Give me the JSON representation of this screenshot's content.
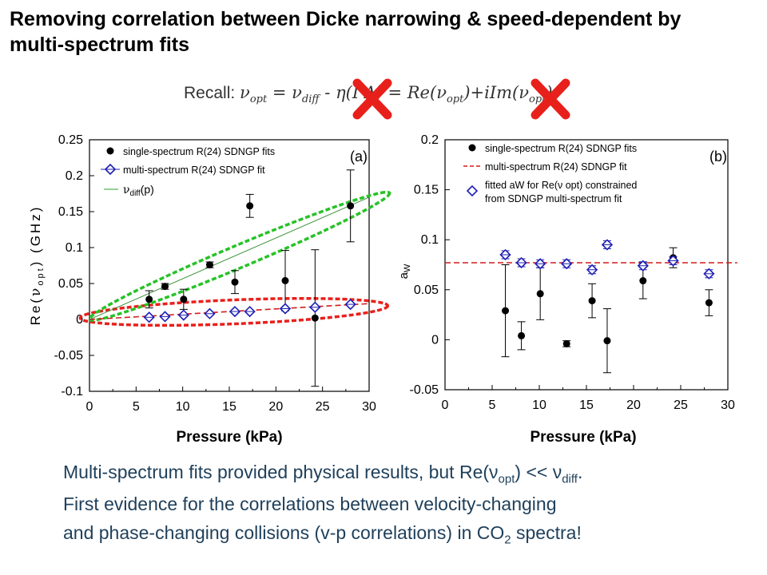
{
  "slide": {
    "title": "Removing correlation between Dicke narrowing & speed-dependent by multi-spectrum fits",
    "recall": {
      "prefix": "Recall: ",
      "nu": "ν",
      "opt": "opt",
      "diff": "diff",
      "eq1": " = ",
      "minus": " - ",
      "eta": "η",
      "hidden_part": "(Γ",
      "delta_close": "Δ) = Re(",
      "plus_im": ")+iIm(",
      "close": ")"
    },
    "bottom": {
      "line1_a": "Multi-spectrum fits provided physical results, but Re(",
      "line1_nu": "ν",
      "line1_sub1": "opt",
      "line1_b": ") << ",
      "line1_nu2": "ν",
      "line1_sub2": "diff",
      "line1_c": ".",
      "line2": "First evidence for the correlations between velocity-changing",
      "line3_a": "and phase-changing collisions  (v-p correlations) in CO",
      "line3_sub": "2",
      "line3_b": " spectra!"
    },
    "colors": {
      "marker_open": "#1f1fb4",
      "red_ellipse": "#e8201c",
      "green_ellipse": "#27c227",
      "red_dash": "#d41c1c",
      "cross": "#e8201c",
      "title": "#000000",
      "body_text": "#1e3f5a"
    }
  },
  "chart_data": [
    {
      "type": "scatter",
      "panel_label": "(a)",
      "xlabel": "Pressure (kPa)",
      "ylabel": "Re(ν opt) (GHz)",
      "xlim": [
        0,
        30
      ],
      "ylim": [
        -0.1,
        0.25
      ],
      "xticks": [
        "0",
        "5",
        "10",
        "15",
        "20",
        "25",
        "30"
      ],
      "yticks": [
        "-0.1",
        "-0.05",
        "0",
        "0.05",
        "0.1",
        "0.15",
        "0.2",
        "0.25"
      ],
      "legend": [
        "single-spectrum R(24) SDNGP fits",
        "multi-spectrum R(24) SDNGP fit",
        "ν diff(p)"
      ],
      "series": [
        {
          "name": "single-spectrum R(24) SDNGP fits",
          "marker": "filled-circle",
          "x": [
            6.4,
            8.1,
            10.1,
            12.9,
            15.6,
            17.2,
            21.0,
            24.2,
            28.0
          ],
          "y": [
            0.028,
            0.046,
            0.028,
            0.076,
            0.052,
            0.158,
            0.054,
            0.002,
            0.158
          ],
          "yerr": [
            0.012,
            0.004,
            0.014,
            0.004,
            0.016,
            0.016,
            0.042,
            0.095,
            0.05
          ]
        },
        {
          "name": "multi-spectrum R(24) SDNGP fit",
          "marker": "open-diamond",
          "x": [
            6.4,
            8.1,
            10.1,
            12.9,
            15.6,
            17.2,
            21.0,
            24.2,
            28.0
          ],
          "y": [
            0.003,
            0.004,
            0.006,
            0.008,
            0.011,
            0.011,
            0.015,
            0.017,
            0.021
          ]
        }
      ],
      "fit_lines": [
        {
          "name": "multi-spectrum fit trend",
          "style": "red-dash",
          "x": [
            0,
            30
          ],
          "y": [
            0.0,
            0.022
          ]
        },
        {
          "name": "ν diff(p)",
          "style": "green-thin",
          "x": [
            0,
            30
          ],
          "y": [
            0.0,
            0.17
          ]
        }
      ]
    },
    {
      "type": "scatter",
      "panel_label": "(b)",
      "xlabel": "Pressure (kPa)",
      "ylabel": "aW",
      "xlim": [
        0,
        30
      ],
      "ylim": [
        -0.05,
        0.2
      ],
      "xticks": [
        "0",
        "5",
        "10",
        "15",
        "20",
        "25",
        "30"
      ],
      "yticks": [
        "-0.05",
        "0",
        "0.05",
        "0.1",
        "0.15",
        "0.2"
      ],
      "legend": [
        "single-spectrum R(24) SDNGP fits",
        "multi-spectrum R(24) SDNGP fit",
        "fitted aW for Re(ν opt) constrained",
        "from SDNGP multi-spectrum fit"
      ],
      "series": [
        {
          "name": "single-spectrum R(24) SDNGP fits",
          "marker": "filled-circle",
          "x": [
            6.4,
            8.1,
            10.1,
            12.9,
            15.6,
            17.2,
            21.0,
            24.2,
            28.0
          ],
          "y": [
            0.029,
            0.004,
            0.046,
            -0.004,
            0.039,
            -0.001,
            0.059,
            0.082,
            0.037
          ],
          "yerr": [
            0.046,
            0.014,
            0.026,
            0.003,
            0.017,
            0.032,
            0.018,
            0.01,
            0.013
          ]
        },
        {
          "name": "fitted aW for Re(ν opt) constrained from SDNGP multi-spectrum fit",
          "marker": "open-diamond",
          "x": [
            6.4,
            8.1,
            10.1,
            12.9,
            15.6,
            17.2,
            21.0,
            24.2,
            28.0
          ],
          "y": [
            0.085,
            0.077,
            0.076,
            0.076,
            0.07,
            0.095,
            0.074,
            0.079,
            0.066
          ],
          "yerr": [
            0.004,
            0.004,
            0.004,
            0.004,
            0.004,
            0.004,
            0.004,
            0.004,
            0.004
          ]
        }
      ],
      "fit_lines": [
        {
          "name": "multi-spectrum R(24) SDNGP fit",
          "style": "red-dash",
          "x": [
            0,
            31
          ],
          "y": [
            0.077,
            0.077
          ]
        }
      ]
    }
  ]
}
